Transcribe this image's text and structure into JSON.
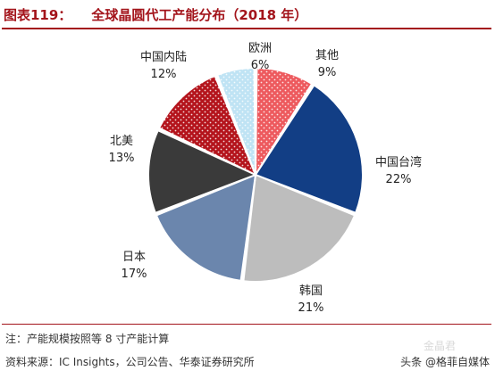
{
  "header": {
    "figure_label": "图表119：",
    "title": "全球晶圆代工产能分布（2018 年）"
  },
  "colors": {
    "accent": "#a3141b"
  },
  "chart_data": {
    "type": "pie",
    "start_angle_deg": 0,
    "direction": "clockwise",
    "slices": [
      {
        "label": "其他",
        "value": 9,
        "value_text": "9%",
        "color": "#ed5a5e",
        "pattern": "dots"
      },
      {
        "label": "中国台湾",
        "value": 22,
        "value_text": "22%",
        "color": "#123e85",
        "pattern": "none"
      },
      {
        "label": "韩国",
        "value": 21,
        "value_text": "21%",
        "color": "#bdbdbd",
        "pattern": "none"
      },
      {
        "label": "日本",
        "value": 17,
        "value_text": "17%",
        "color": "#6b86ad",
        "pattern": "none"
      },
      {
        "label": "北美",
        "value": 13,
        "value_text": "13%",
        "color": "#3a3a3a",
        "pattern": "none"
      },
      {
        "label": "中国内陆",
        "value": 12,
        "value_text": "12%",
        "color": "#b4141c",
        "pattern": "dots"
      },
      {
        "label": "欧洲",
        "value": 6,
        "value_text": "6%",
        "color": "#bfe3f4",
        "pattern": "dots"
      }
    ]
  },
  "footer": {
    "note": "注：产能规模按照等 8 寸产能计算",
    "source": "资料来源：IC Insights，公司公告、华泰证券研究所",
    "watermark": "头条 @格菲自媒体",
    "watermark_ghost": "金晶君"
  }
}
